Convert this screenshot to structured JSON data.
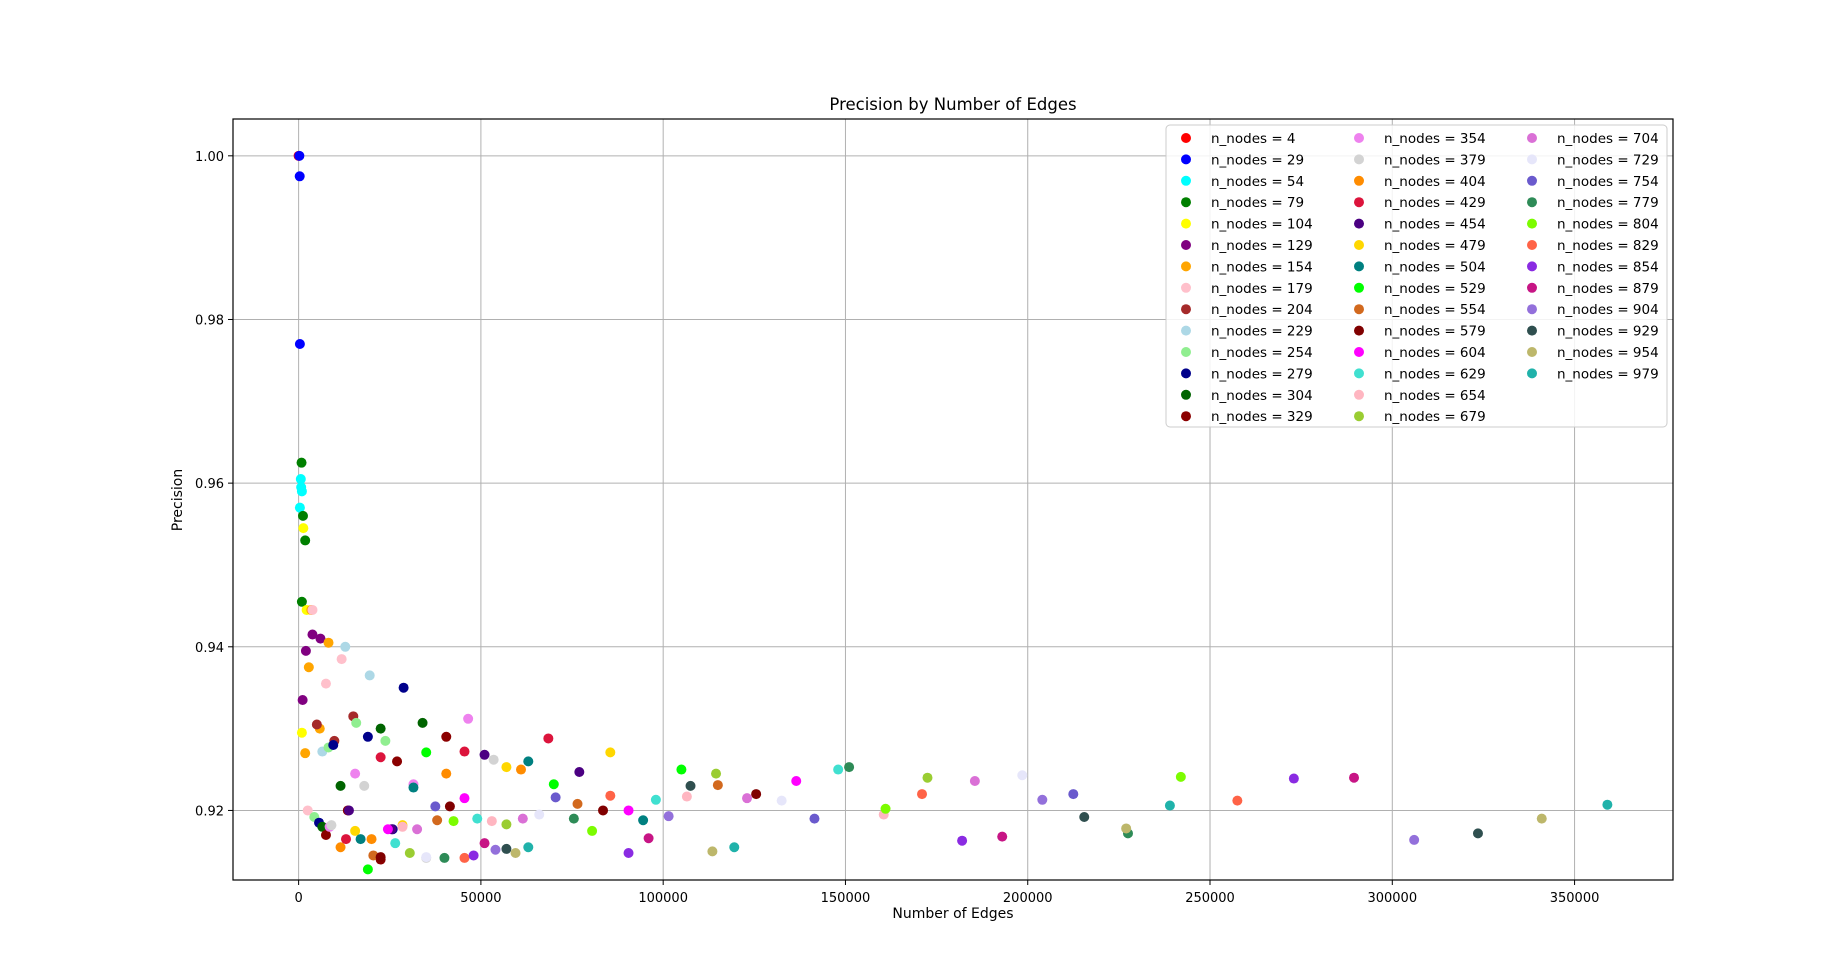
{
  "chart_data": {
    "type": "scatter",
    "title": "Precision by Number of Edges",
    "xlabel": "Number of Edges",
    "ylabel": "Precision",
    "xlim": [
      -18000,
      377000
    ],
    "ylim": [
      0.9115,
      1.0045
    ],
    "xticks": [
      0,
      50000,
      100000,
      150000,
      200000,
      250000,
      300000,
      350000
    ],
    "yticks": [
      0.92,
      0.94,
      0.96,
      0.98,
      1.0
    ],
    "xtick_labels": [
      "0",
      "50000",
      "100000",
      "150000",
      "200000",
      "250000",
      "300000",
      "350000"
    ],
    "ytick_labels": [
      "0.92",
      "0.94",
      "0.96",
      "0.98",
      "1.00"
    ],
    "grid": true,
    "legend_position": "top-right",
    "legend_columns": 3,
    "series": [
      {
        "name": "n_nodes = 4",
        "color": "#ff0000",
        "points": [
          [
            0,
            1.0
          ]
        ]
      },
      {
        "name": "n_nodes = 29",
        "color": "#0000ff",
        "points": [
          [
            200,
            1.0
          ],
          [
            300,
            0.9975
          ],
          [
            350,
            0.977
          ]
        ]
      },
      {
        "name": "n_nodes = 54",
        "color": "#00ffff",
        "points": [
          [
            350,
            0.957
          ],
          [
            600,
            0.9605
          ],
          [
            700,
            0.9595
          ],
          [
            900,
            0.959
          ]
        ]
      },
      {
        "name": "n_nodes = 79",
        "color": "#008000",
        "points": [
          [
            800,
            0.9625
          ],
          [
            900,
            0.9455
          ],
          [
            1200,
            0.956
          ],
          [
            1800,
            0.953
          ]
        ]
      },
      {
        "name": "n_nodes = 104",
        "color": "#ffff00",
        "points": [
          [
            900,
            0.9295
          ],
          [
            1300,
            0.9545
          ],
          [
            2200,
            0.9445
          ]
        ]
      },
      {
        "name": "n_nodes = 129",
        "color": "#800080",
        "points": [
          [
            1100,
            0.9335
          ],
          [
            2000,
            0.9395
          ],
          [
            3800,
            0.9415
          ],
          [
            6000,
            0.941
          ]
        ]
      },
      {
        "name": "n_nodes = 154",
        "color": "#ffa500",
        "points": [
          [
            1800,
            0.927
          ],
          [
            2800,
            0.9375
          ],
          [
            3500,
            0.9445
          ],
          [
            5800,
            0.93
          ],
          [
            8200,
            0.9405
          ]
        ]
      },
      {
        "name": "n_nodes = 179",
        "color": "#ffc0cb",
        "points": [
          [
            2500,
            0.92
          ],
          [
            3800,
            0.9445
          ],
          [
            7500,
            0.9355
          ],
          [
            11800,
            0.9385
          ]
        ]
      },
      {
        "name": "n_nodes = 204",
        "color": "#a52a2a",
        "points": [
          [
            5000,
            0.9305
          ],
          [
            9800,
            0.9285
          ],
          [
            15000,
            0.9315
          ]
        ]
      },
      {
        "name": "n_nodes = 229",
        "color": "#add8e6",
        "points": [
          [
            6500,
            0.9272
          ],
          [
            12800,
            0.94
          ],
          [
            19500,
            0.9365
          ]
        ]
      },
      {
        "name": "n_nodes = 254",
        "color": "#90ee90",
        "points": [
          [
            4300,
            0.9192
          ],
          [
            8200,
            0.9277
          ],
          [
            15800,
            0.9307
          ],
          [
            23800,
            0.9285
          ]
        ]
      },
      {
        "name": "n_nodes = 279",
        "color": "#00008b",
        "points": [
          [
            5600,
            0.9185
          ],
          [
            9500,
            0.928
          ],
          [
            19000,
            0.929
          ],
          [
            25800,
            0.9177
          ],
          [
            28800,
            0.935
          ]
        ]
      },
      {
        "name": "n_nodes = 304",
        "color": "#006400",
        "points": [
          [
            6500,
            0.918
          ],
          [
            11500,
            0.923
          ],
          [
            22500,
            0.93
          ],
          [
            34000,
            0.9307
          ]
        ]
      },
      {
        "name": "n_nodes = 329",
        "color": "#8b0000",
        "points": [
          [
            7500,
            0.917
          ],
          [
            13500,
            0.92
          ],
          [
            22500,
            0.914
          ],
          [
            27000,
            0.926
          ],
          [
            40500,
            0.929
          ]
        ]
      },
      {
        "name": "n_nodes = 354",
        "color": "#ee82ee",
        "points": [
          [
            8500,
            0.918
          ],
          [
            15500,
            0.9245
          ],
          [
            31500,
            0.9232
          ],
          [
            46500,
            0.9312
          ]
        ]
      },
      {
        "name": "n_nodes = 379",
        "color": "#d3d3d3",
        "points": [
          [
            9000,
            0.9182
          ],
          [
            18000,
            0.923
          ],
          [
            35000,
            0.9142
          ],
          [
            53500,
            0.9262
          ]
        ]
      },
      {
        "name": "n_nodes = 404",
        "color": "#ff8c00",
        "points": [
          [
            11500,
            0.9155
          ],
          [
            20000,
            0.9165
          ],
          [
            40500,
            0.9245
          ],
          [
            61000,
            0.925
          ]
        ]
      },
      {
        "name": "n_nodes = 429",
        "color": "#dc143c",
        "points": [
          [
            13000,
            0.9165
          ],
          [
            22500,
            0.9265
          ],
          [
            45500,
            0.9272
          ],
          [
            68500,
            0.9288
          ]
        ]
      },
      {
        "name": "n_nodes = 454",
        "color": "#4b0082",
        "points": [
          [
            13800,
            0.92
          ],
          [
            25500,
            0.9177
          ],
          [
            51000,
            0.9268
          ],
          [
            77000,
            0.9247
          ]
        ]
      },
      {
        "name": "n_nodes = 479",
        "color": "#ffd700",
        "points": [
          [
            15500,
            0.9175
          ],
          [
            28500,
            0.9182
          ],
          [
            57000,
            0.9253
          ],
          [
            85500,
            0.9271
          ]
        ]
      },
      {
        "name": "n_nodes = 504",
        "color": "#008080",
        "points": [
          [
            17000,
            0.9165
          ],
          [
            31500,
            0.9228
          ],
          [
            63000,
            0.926
          ],
          [
            94500,
            0.9188
          ]
        ]
      },
      {
        "name": "n_nodes = 529",
        "color": "#00ff00",
        "points": [
          [
            19000,
            0.9128
          ],
          [
            35000,
            0.9271
          ],
          [
            70000,
            0.9232
          ],
          [
            105000,
            0.925
          ]
        ]
      },
      {
        "name": "n_nodes = 554",
        "color": "#d2691e",
        "points": [
          [
            20500,
            0.9145
          ],
          [
            38000,
            0.9188
          ],
          [
            76500,
            0.9208
          ],
          [
            115000,
            0.9231
          ]
        ]
      },
      {
        "name": "n_nodes = 579",
        "color": "#800000",
        "points": [
          [
            22500,
            0.9143
          ],
          [
            41500,
            0.9205
          ],
          [
            83500,
            0.92
          ],
          [
            125500,
            0.922
          ]
        ]
      },
      {
        "name": "n_nodes = 604",
        "color": "#ff00ff",
        "points": [
          [
            24500,
            0.9177
          ],
          [
            45500,
            0.9215
          ],
          [
            90500,
            0.92
          ],
          [
            136500,
            0.9236
          ]
        ]
      },
      {
        "name": "n_nodes = 629",
        "color": "#40e0d0",
        "points": [
          [
            26500,
            0.916
          ],
          [
            49000,
            0.919
          ],
          [
            98000,
            0.9213
          ],
          [
            148000,
            0.925
          ]
        ]
      },
      {
        "name": "n_nodes = 654",
        "color": "#ffb6c1",
        "points": [
          [
            28500,
            0.918
          ],
          [
            53000,
            0.9187
          ],
          [
            106500,
            0.9217
          ],
          [
            160500,
            0.9195
          ]
        ]
      },
      {
        "name": "n_nodes = 679",
        "color": "#9acd32",
        "points": [
          [
            30500,
            0.9148
          ],
          [
            57000,
            0.9183
          ],
          [
            114500,
            0.9245
          ],
          [
            172500,
            0.924
          ]
        ]
      },
      {
        "name": "n_nodes = 704",
        "color": "#da70d6",
        "points": [
          [
            32500,
            0.9177
          ],
          [
            61500,
            0.919
          ],
          [
            123000,
            0.9215
          ],
          [
            185500,
            0.9236
          ]
        ]
      },
      {
        "name": "n_nodes = 729",
        "color": "#e6e6fa",
        "points": [
          [
            35000,
            0.9143
          ],
          [
            66000,
            0.9195
          ],
          [
            132500,
            0.9212
          ],
          [
            198500,
            0.9243
          ]
        ]
      },
      {
        "name": "n_nodes = 754",
        "color": "#6a5acd",
        "points": [
          [
            37500,
            0.9205
          ],
          [
            70500,
            0.9216
          ],
          [
            141500,
            0.919
          ],
          [
            212500,
            0.922
          ]
        ]
      },
      {
        "name": "n_nodes = 779",
        "color": "#2e8b57",
        "points": [
          [
            40000,
            0.9142
          ],
          [
            75500,
            0.919
          ],
          [
            151000,
            0.9253
          ],
          [
            227500,
            0.9172
          ]
        ]
      },
      {
        "name": "n_nodes = 804",
        "color": "#7cfc00",
        "points": [
          [
            42500,
            0.9187
          ],
          [
            80500,
            0.9175
          ],
          [
            161000,
            0.9202
          ],
          [
            242000,
            0.9241
          ]
        ]
      },
      {
        "name": "n_nodes = 829",
        "color": "#ff6347",
        "points": [
          [
            45500,
            0.9142
          ],
          [
            85500,
            0.9218
          ],
          [
            171000,
            0.922
          ],
          [
            257500,
            0.9212
          ]
        ]
      },
      {
        "name": "n_nodes = 854",
        "color": "#8a2be2",
        "points": [
          [
            48000,
            0.9145
          ],
          [
            90500,
            0.9148
          ],
          [
            182000,
            0.9163
          ],
          [
            273000,
            0.9239
          ]
        ]
      },
      {
        "name": "n_nodes = 879",
        "color": "#c71585",
        "points": [
          [
            51000,
            0.916
          ],
          [
            96000,
            0.9166
          ],
          [
            193000,
            0.9168
          ],
          [
            289500,
            0.924
          ]
        ]
      },
      {
        "name": "n_nodes = 904",
        "color": "#9370db",
        "points": [
          [
            54000,
            0.9152
          ],
          [
            101500,
            0.9193
          ],
          [
            204000,
            0.9213
          ],
          [
            306000,
            0.9164
          ]
        ]
      },
      {
        "name": "n_nodes = 929",
        "color": "#2f4f4f",
        "points": [
          [
            57000,
            0.9153
          ],
          [
            107500,
            0.923
          ],
          [
            215500,
            0.9192
          ],
          [
            323500,
            0.9172
          ]
        ]
      },
      {
        "name": "n_nodes = 954",
        "color": "#bdb76b",
        "points": [
          [
            59500,
            0.9148
          ],
          [
            113500,
            0.915
          ],
          [
            227000,
            0.9178
          ],
          [
            341000,
            0.919
          ]
        ]
      },
      {
        "name": "n_nodes = 979",
        "color": "#20b2aa",
        "points": [
          [
            63000,
            0.9155
          ],
          [
            119500,
            0.9155
          ],
          [
            239000,
            0.9206
          ],
          [
            359000,
            0.9207
          ]
        ]
      }
    ]
  }
}
